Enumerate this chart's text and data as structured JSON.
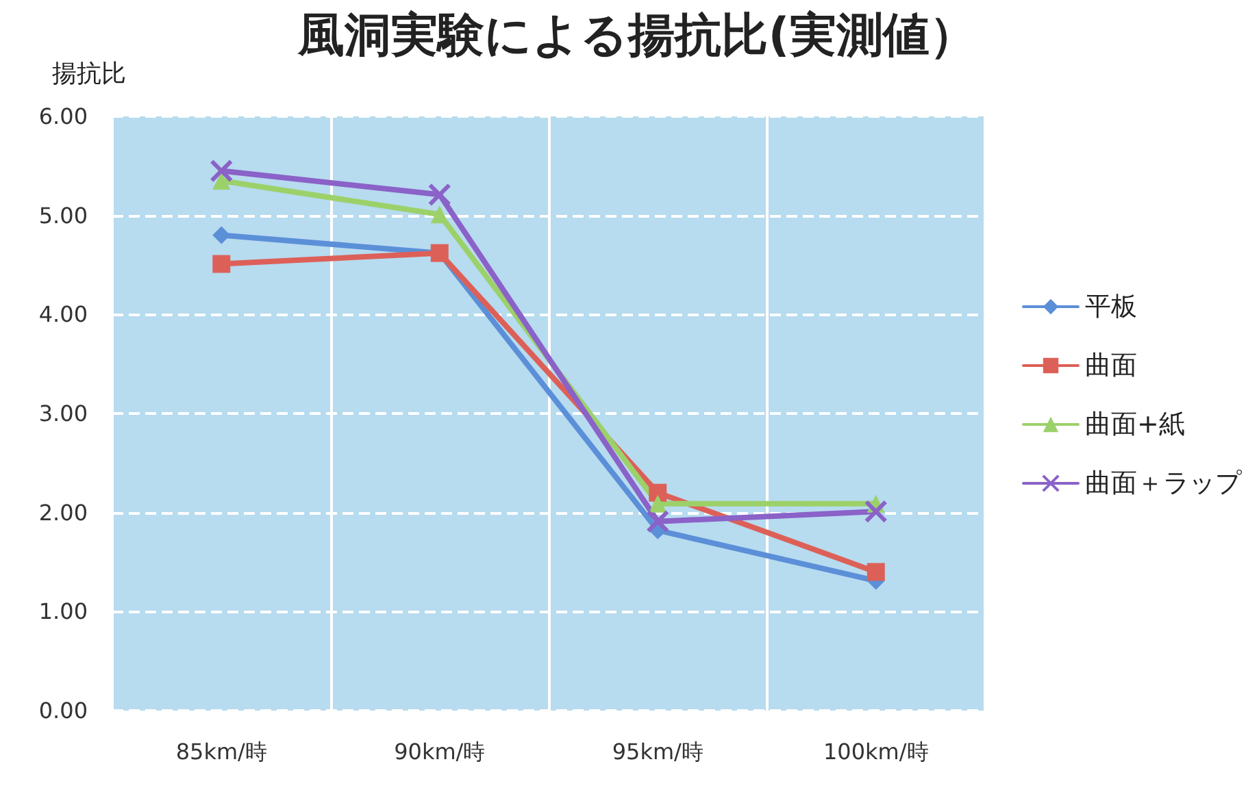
{
  "chart_data": {
    "type": "line",
    "title": "風洞実験による揚抗比(実測値）",
    "ylabel": "揚抗比",
    "categories": [
      "85km/時",
      "90km/時",
      "95km/時",
      "100km/時"
    ],
    "series": [
      {
        "name": "平板",
        "color": "#5b8fd8",
        "marker": "diamond",
        "values": [
          4.8,
          4.62,
          1.82,
          1.31
        ]
      },
      {
        "name": "曲面",
        "color": "#dd6058",
        "marker": "square",
        "values": [
          4.51,
          4.62,
          2.2,
          1.4
        ]
      },
      {
        "name": "曲面+紙",
        "color": "#9cd16a",
        "marker": "triangle",
        "values": [
          5.35,
          5.01,
          2.09,
          2.09
        ]
      },
      {
        "name": "曲面＋ラップ",
        "color": "#8a62c8",
        "marker": "cross",
        "values": [
          5.45,
          5.21,
          1.91,
          2.01
        ]
      }
    ],
    "ylim": [
      0,
      6
    ],
    "yticks": [
      {
        "value": 0,
        "label": "0.00"
      },
      {
        "value": 1,
        "label": "1.00"
      },
      {
        "value": 2,
        "label": "2.00"
      },
      {
        "value": 3,
        "label": "3.00"
      },
      {
        "value": 4,
        "label": "4.00"
      },
      {
        "value": 5,
        "label": "5.00"
      },
      {
        "value": 6,
        "label": "6.00"
      }
    ],
    "grid": true,
    "legend": "right",
    "line_style": "solid"
  }
}
